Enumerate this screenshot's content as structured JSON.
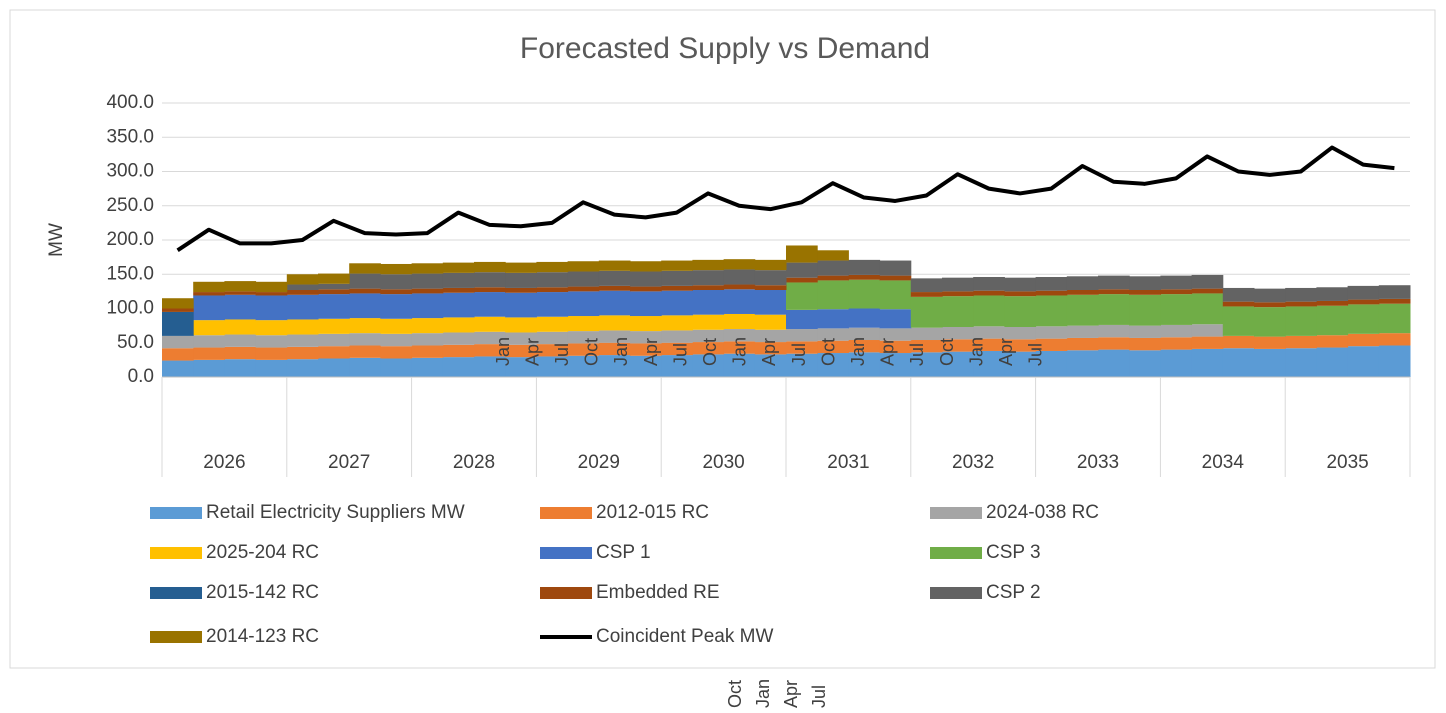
{
  "chart_data": {
    "type": "stacked_area_line",
    "title": "Forecasted Supply vs Demand",
    "y_label": "MW",
    "year_labels": [
      "2026",
      "2027",
      "2028",
      "2029",
      "2030",
      "2031",
      "2032",
      "2033",
      "2034",
      "2035"
    ],
    "ylim": [
      0,
      400
    ],
    "yticks": [
      {
        "value": 0,
        "label": "0.0"
      },
      {
        "value": 50,
        "label": "50.0"
      },
      {
        "value": 100,
        "label": "100.0"
      },
      {
        "value": 150,
        "label": "150.0"
      },
      {
        "value": 200,
        "label": "200.0"
      },
      {
        "value": 250,
        "label": "250.0"
      },
      {
        "value": 300,
        "label": "300.0"
      },
      {
        "value": 350,
        "label": "350.0"
      },
      {
        "value": 400,
        "label": "400.0"
      }
    ],
    "grid": true,
    "stray_month_labels": [
      "Jan",
      "Apr",
      "Jul",
      "Oct",
      "Jan",
      "Apr",
      "Jul",
      "Oct",
      "Jan",
      "Apr",
      "Jul",
      "Oct",
      "Jan",
      "Apr",
      "Jul",
      "Oct",
      "Jan",
      "Apr",
      "Jul"
    ],
    "stray_month_labels_below": [
      "Oct",
      "Jan",
      "Apr",
      "Jul"
    ],
    "series": [
      {
        "name": "Retail Electricity Suppliers MW",
        "color": "#5b9bd5",
        "values": [
          24,
          25,
          26,
          25,
          26,
          27,
          28,
          27,
          28,
          29,
          30,
          29,
          30,
          31,
          32,
          31,
          32,
          33,
          34,
          33,
          34,
          35,
          36,
          35,
          36,
          37,
          38,
          37,
          38,
          39,
          40,
          39,
          40,
          41,
          42,
          41,
          42,
          43,
          45,
          46
        ]
      },
      {
        "name": "2012-015 RC",
        "color": "#ed7d31",
        "values": [
          18,
          18,
          18,
          18,
          18,
          18,
          18,
          18,
          18,
          18,
          18,
          18,
          18,
          18,
          18,
          18,
          18,
          18,
          18,
          18,
          18,
          18,
          18,
          18,
          18,
          18,
          18,
          18,
          18,
          18,
          18,
          18,
          18,
          18,
          18,
          18,
          18,
          18,
          18,
          18
        ]
      },
      {
        "name": "2024-038 RC",
        "color": "#a5a5a5",
        "values": [
          18,
          18,
          18,
          18,
          18,
          18,
          18,
          18,
          18,
          18,
          18,
          18,
          18,
          18,
          18,
          18,
          18,
          18,
          18,
          18,
          18,
          18,
          18,
          18,
          18,
          18,
          18,
          18,
          18,
          18,
          18,
          18,
          18,
          18,
          0,
          0,
          0,
          0,
          0,
          0
        ]
      },
      {
        "name": "2025-204 RC",
        "color": "#ffc000",
        "values": [
          0,
          22,
          22,
          22,
          22,
          22,
          22,
          22,
          22,
          22,
          22,
          22,
          22,
          22,
          22,
          22,
          22,
          22,
          22,
          22,
          0,
          0,
          0,
          0,
          0,
          0,
          0,
          0,
          0,
          0,
          0,
          0,
          0,
          0,
          0,
          0,
          0,
          0,
          0,
          0
        ]
      },
      {
        "name": "CSP 1",
        "color": "#4472c4",
        "values": [
          0,
          36,
          36,
          36,
          36,
          36,
          36,
          36,
          36,
          36,
          36,
          36,
          36,
          36,
          36,
          36,
          36,
          36,
          36,
          36,
          28,
          28,
          28,
          28,
          0,
          0,
          0,
          0,
          0,
          0,
          0,
          0,
          0,
          0,
          0,
          0,
          0,
          0,
          0,
          0
        ]
      },
      {
        "name": "CSP 3",
        "color": "#70ad47",
        "values": [
          0,
          0,
          0,
          0,
          0,
          0,
          0,
          0,
          0,
          0,
          0,
          0,
          0,
          0,
          0,
          0,
          0,
          0,
          0,
          0,
          40,
          42,
          42,
          42,
          45,
          45,
          45,
          45,
          45,
          45,
          45,
          45,
          45,
          45,
          43,
          43,
          43,
          43,
          43,
          43
        ]
      },
      {
        "name": "2015-142 RC",
        "color": "#255e91",
        "values": [
          35,
          0,
          0,
          0,
          0,
          0,
          0,
          0,
          0,
          0,
          0,
          0,
          0,
          0,
          0,
          0,
          0,
          0,
          0,
          0,
          0,
          0,
          0,
          0,
          0,
          0,
          0,
          0,
          0,
          0,
          0,
          0,
          0,
          0,
          0,
          0,
          0,
          0,
          0,
          0
        ]
      },
      {
        "name": "Embedded RE",
        "color": "#9e480e",
        "values": [
          5,
          5,
          5,
          5,
          7,
          7,
          7,
          7,
          7,
          7,
          7,
          7,
          7,
          7,
          7,
          7,
          7,
          7,
          7,
          7,
          7,
          7,
          7,
          7,
          7,
          7,
          7,
          7,
          7,
          7,
          7,
          7,
          7,
          7,
          7,
          7,
          7,
          7,
          7,
          7
        ]
      },
      {
        "name": "CSP 2",
        "color": "#636363",
        "values": [
          0,
          0,
          0,
          0,
          8,
          8,
          22,
          22,
          22,
          22,
          22,
          22,
          22,
          22,
          22,
          22,
          22,
          22,
          22,
          22,
          22,
          22,
          22,
          22,
          20,
          20,
          20,
          20,
          20,
          20,
          20,
          20,
          20,
          20,
          20,
          20,
          20,
          20,
          20,
          20
        ]
      },
      {
        "name": "2014-123 RC",
        "color": "#997300",
        "values": [
          15,
          15,
          15,
          15,
          15,
          15,
          15,
          15,
          15,
          15,
          15,
          15,
          15,
          15,
          15,
          15,
          15,
          15,
          15,
          15,
          25,
          15,
          0,
          0,
          0,
          0,
          0,
          0,
          0,
          0,
          0,
          0,
          0,
          0,
          0,
          0,
          0,
          0,
          0,
          0
        ]
      },
      {
        "name": "Coincident Peak MW",
        "color": "#000000",
        "kind": "line",
        "values": [
          185,
          215,
          195,
          195,
          200,
          228,
          210,
          208,
          210,
          240,
          222,
          220,
          225,
          255,
          237,
          233,
          240,
          268,
          250,
          245,
          255,
          283,
          262,
          257,
          265,
          296,
          275,
          268,
          275,
          308,
          285,
          282,
          290,
          322,
          300,
          295,
          300,
          335,
          310,
          305
        ]
      }
    ]
  }
}
